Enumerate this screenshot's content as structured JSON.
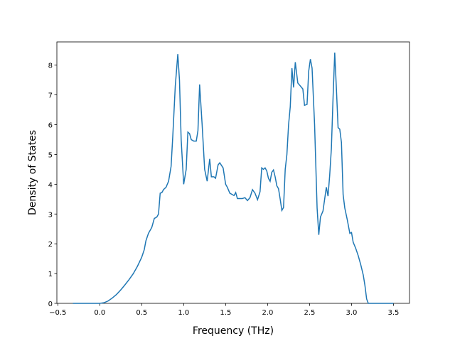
{
  "chart_data": {
    "type": "line",
    "xlabel": "Frequency (THz)",
    "ylabel": "Density of States",
    "x": [
      -0.32,
      0.0,
      0.05,
      0.1,
      0.15,
      0.2,
      0.25,
      0.3,
      0.35,
      0.4,
      0.45,
      0.5,
      0.53,
      0.55,
      0.58,
      0.62,
      0.65,
      0.68,
      0.7,
      0.72,
      0.74,
      0.76,
      0.79,
      0.82,
      0.85,
      0.87,
      0.9,
      0.93,
      0.95,
      0.97,
      1.0,
      1.03,
      1.05,
      1.07,
      1.09,
      1.12,
      1.15,
      1.17,
      1.19,
      1.22,
      1.25,
      1.28,
      1.3,
      1.31,
      1.33,
      1.36,
      1.38,
      1.41,
      1.43,
      1.47,
      1.5,
      1.52,
      1.55,
      1.6,
      1.62,
      1.64,
      1.7,
      1.73,
      1.76,
      1.79,
      1.82,
      1.85,
      1.88,
      1.91,
      1.93,
      1.95,
      1.97,
      1.99,
      2.01,
      2.03,
      2.05,
      2.07,
      2.09,
      2.11,
      2.13,
      2.15,
      2.17,
      2.19,
      2.21,
      2.23,
      2.25,
      2.27,
      2.29,
      2.31,
      2.33,
      2.36,
      2.39,
      2.42,
      2.44,
      2.47,
      2.49,
      2.51,
      2.53,
      2.56,
      2.59,
      2.61,
      2.63,
      2.66,
      2.68,
      2.7,
      2.72,
      2.74,
      2.76,
      2.78,
      2.8,
      2.82,
      2.84,
      2.86,
      2.88,
      2.9,
      2.92,
      2.95,
      2.98,
      3.0,
      3.02,
      3.05,
      3.08,
      3.11,
      3.14,
      3.16,
      3.18,
      3.2,
      3.5
    ],
    "series": [
      {
        "color": "#1f77b4",
        "values": [
          0,
          0,
          0.02,
          0.08,
          0.18,
          0.3,
          0.45,
          0.62,
          0.8,
          1.0,
          1.25,
          1.55,
          1.8,
          2.1,
          2.35,
          2.55,
          2.85,
          2.9,
          3.0,
          3.7,
          3.72,
          3.82,
          3.9,
          4.1,
          4.6,
          5.6,
          7.3,
          8.37,
          7.5,
          5.5,
          4.0,
          4.5,
          5.75,
          5.7,
          5.5,
          5.45,
          5.45,
          5.8,
          7.35,
          6.0,
          4.5,
          4.1,
          4.6,
          4.85,
          4.25,
          4.25,
          4.2,
          4.65,
          4.72,
          4.55,
          4.0,
          3.9,
          3.7,
          3.62,
          3.72,
          3.52,
          3.52,
          3.55,
          3.45,
          3.55,
          3.82,
          3.7,
          3.48,
          3.75,
          4.55,
          4.5,
          4.55,
          4.45,
          4.2,
          4.1,
          4.4,
          4.48,
          4.25,
          3.95,
          3.85,
          3.5,
          3.12,
          3.22,
          4.5,
          5.0,
          6.0,
          6.6,
          7.9,
          7.25,
          8.1,
          7.4,
          7.3,
          7.2,
          6.65,
          6.68,
          7.8,
          8.2,
          7.9,
          6.0,
          3.2,
          2.3,
          2.9,
          3.1,
          3.5,
          3.9,
          3.6,
          4.3,
          5.2,
          6.9,
          8.42,
          7.2,
          5.9,
          5.85,
          5.4,
          3.65,
          3.2,
          2.8,
          2.35,
          2.38,
          2.05,
          1.85,
          1.6,
          1.3,
          0.95,
          0.6,
          0.15,
          0,
          0
        ]
      }
    ],
    "xlim": [
      -0.511,
      3.691
    ],
    "ylim": [
      0,
      8.78
    ],
    "xticks": [
      {
        "value": -0.5,
        "label": "−0.5"
      },
      {
        "value": 0,
        "label": "0.0"
      },
      0.5,
      {
        "value": 1,
        "label": "1.0"
      },
      1.5,
      {
        "value": 2,
        "label": "2.0"
      },
      2.5,
      {
        "value": 3,
        "label": "3.0"
      },
      3.5
    ],
    "yticks": [
      0,
      1,
      2,
      3,
      4,
      5,
      6,
      7,
      8
    ]
  }
}
